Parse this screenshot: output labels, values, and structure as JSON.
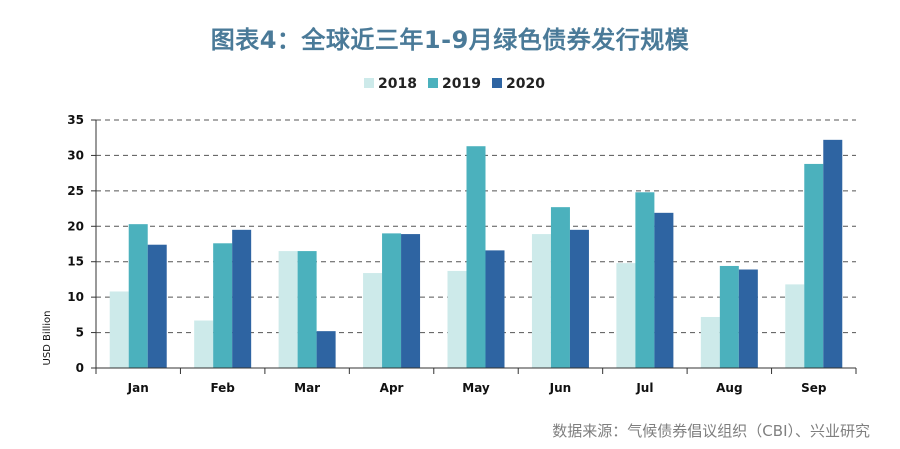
{
  "title": "图表4：全球近三年1-9月绿色债券发行规模",
  "source": "数据来源：气候债券倡议组织（CBI）、兴业研究",
  "chart_data": {
    "type": "bar",
    "categories": [
      "Jan",
      "Feb",
      "Mar",
      "Apr",
      "May",
      "Jun",
      "Jul",
      "Aug",
      "Sep"
    ],
    "series": [
      {
        "name": "2018",
        "color": "#cdeaea",
        "values": [
          10.8,
          6.7,
          16.5,
          13.4,
          13.7,
          18.9,
          14.8,
          7.2,
          11.8
        ]
      },
      {
        "name": "2019",
        "color": "#4bb1bd",
        "values": [
          20.3,
          17.6,
          16.5,
          19.0,
          31.3,
          22.7,
          24.8,
          14.4,
          28.8
        ]
      },
      {
        "name": "2020",
        "color": "#2e64a2",
        "values": [
          17.4,
          19.5,
          5.2,
          18.9,
          16.6,
          19.5,
          21.9,
          13.9,
          32.2
        ]
      }
    ],
    "ylabel": "USD Billion",
    "ylim": [
      0,
      35
    ],
    "yticks": [
      0,
      5,
      10,
      15,
      20,
      25,
      30,
      35
    ],
    "grid": true,
    "legend": "top-center"
  }
}
